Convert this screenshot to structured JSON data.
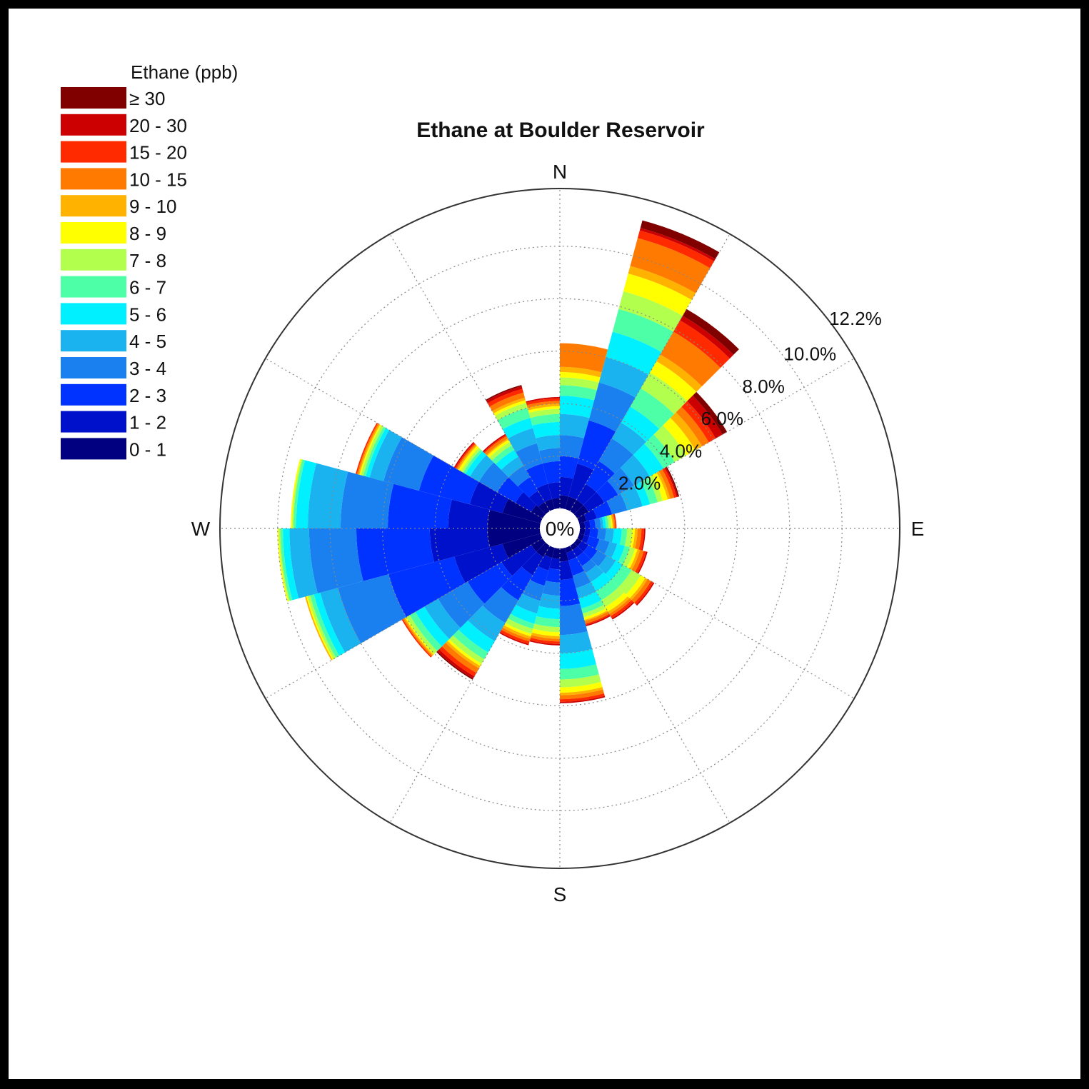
{
  "chart_data": {
    "type": "wind_rose",
    "title": "Ethane at Boulder Reservoir",
    "directions": [
      "N",
      "E",
      "S",
      "W"
    ],
    "center_label": "0%",
    "radial_unit": "%",
    "radial_max": 12.2,
    "ring_labels": [
      "2.0%",
      "4.0%",
      "6.0%",
      "8.0%",
      "10.0%",
      "12.2%"
    ],
    "ring_values": [
      2,
      4,
      6,
      8,
      10,
      12.2
    ],
    "legend": {
      "title": "Ethane (ppb)",
      "bins": [
        {
          "label": "≥ 30",
          "color": "#800000"
        },
        {
          "label": "20 - 30",
          "color": "#CC0000"
        },
        {
          "label": "15 - 20",
          "color": "#FF2A00"
        },
        {
          "label": "10 - 15",
          "color": "#FF7A00"
        },
        {
          "label": "9 - 10",
          "color": "#FFB300"
        },
        {
          "label": "8 - 9",
          "color": "#FFFF00"
        },
        {
          "label": "7 - 8",
          "color": "#B3FF4D"
        },
        {
          "label": "6 - 7",
          "color": "#4DFFA6"
        },
        {
          "label": "5 - 6",
          "color": "#00F0FF"
        },
        {
          "label": "4 - 5",
          "color": "#1AB3F0"
        },
        {
          "label": "3 - 4",
          "color": "#1A80F0"
        },
        {
          "label": "2 - 3",
          "color": "#0033FF"
        },
        {
          "label": "1 - 2",
          "color": "#0011CC"
        },
        {
          "label": "0 - 1",
          "color": "#000080"
        }
      ]
    },
    "bin_order_inner_to_outer": [
      "0 - 1",
      "1 - 2",
      "2 - 3",
      "3 - 4",
      "4 - 5",
      "5 - 6",
      "6 - 7",
      "7 - 8",
      "8 - 9",
      "9 - 10",
      "10 - 15",
      "15 - 20",
      "20 - 30",
      "≥ 30"
    ],
    "sector_width_deg": 15,
    "sectors": [
      {
        "center_deg": 7.5,
        "cumulative_pct": [
          0.5,
          1.2,
          2.0,
          2.8,
          3.6,
          4.3,
          4.7,
          5.0,
          5.2,
          5.4,
          6.3,
          6.3,
          6.3,
          6.3
        ]
      },
      {
        "center_deg": 22.5,
        "cumulative_pct": [
          0.5,
          1.8,
          3.5,
          5.0,
          6.0,
          7.0,
          7.9,
          8.6,
          9.3,
          9.6,
          10.7,
          11.0,
          11.1,
          11.4
        ]
      },
      {
        "center_deg": 37.5,
        "cumulative_pct": [
          0.5,
          1.2,
          2.2,
          3.2,
          3.9,
          4.6,
          5.4,
          6.1,
          6.6,
          6.9,
          7.9,
          8.4,
          8.6,
          8.9
        ]
      },
      {
        "center_deg": 52.5,
        "cumulative_pct": [
          0.5,
          1.2,
          1.8,
          2.5,
          3.2,
          3.8,
          4.3,
          4.8,
          5.2,
          5.5,
          5.8,
          6.1,
          6.4,
          6.6
        ]
      },
      {
        "center_deg": 67.5,
        "cumulative_pct": [
          0.3,
          0.7,
          1.3,
          1.9,
          2.5,
          2.8,
          3.1,
          3.3,
          3.5,
          3.6,
          3.75,
          3.85,
          3.9,
          3.95
        ]
      },
      {
        "center_deg": 82.5,
        "cumulative_pct": [
          0.2,
          0.4,
          0.6,
          0.8,
          0.9,
          1.0,
          1.1,
          1.2,
          1.25,
          1.3,
          1.35,
          1.4,
          1.4,
          1.4
        ]
      },
      {
        "center_deg": 97.5,
        "cumulative_pct": [
          0.2,
          0.4,
          0.7,
          1.0,
          1.3,
          1.6,
          1.8,
          2.0,
          2.1,
          2.2,
          2.35,
          2.45,
          2.5,
          2.5
        ]
      },
      {
        "center_deg": 112.5,
        "cumulative_pct": [
          0.2,
          0.4,
          0.8,
          1.2,
          1.5,
          1.8,
          2.0,
          2.2,
          2.3,
          2.4,
          2.55,
          2.65,
          2.7,
          2.7
        ]
      },
      {
        "center_deg": 127.5,
        "cumulative_pct": [
          0.2,
          0.5,
          0.9,
          1.3,
          1.7,
          2.0,
          2.4,
          2.8,
          3.0,
          3.1,
          3.25,
          3.35,
          3.4,
          3.4
        ]
      },
      {
        "center_deg": 142.5,
        "cumulative_pct": [
          0.2,
          0.5,
          0.9,
          1.2,
          1.6,
          2.0,
          2.4,
          2.7,
          2.9,
          3.0,
          3.1,
          3.2,
          3.25,
          3.25
        ]
      },
      {
        "center_deg": 157.5,
        "cumulative_pct": [
          0.2,
          0.5,
          1.1,
          1.6,
          2.0,
          2.4,
          2.6,
          2.75,
          2.85,
          2.9,
          3.0,
          3.05,
          3.1,
          3.1
        ]
      },
      {
        "center_deg": 172.5,
        "cumulative_pct": [
          0.5,
          1.2,
          2.2,
          3.3,
          4.0,
          4.6,
          5.0,
          5.3,
          5.5,
          5.6,
          5.75,
          5.85,
          5.9,
          5.9
        ]
      },
      {
        "center_deg": 187.5,
        "cumulative_pct": [
          0.4,
          0.8,
          1.3,
          1.8,
          2.3,
          2.7,
          3.0,
          3.2,
          3.35,
          3.45,
          3.55,
          3.65,
          3.7,
          3.7
        ]
      },
      {
        "center_deg": 202.5,
        "cumulative_pct": [
          0.4,
          0.9,
          1.5,
          2.1,
          2.6,
          3.0,
          3.2,
          3.4,
          3.5,
          3.6,
          3.7,
          3.8,
          3.85,
          3.85
        ]
      },
      {
        "center_deg": 217.5,
        "cumulative_pct": [
          0.5,
          1.3,
          2.4,
          3.4,
          4.2,
          4.7,
          5.0,
          5.2,
          5.3,
          5.4,
          5.6,
          5.75,
          5.85,
          5.9
        ]
      },
      {
        "center_deg": 232.5,
        "cumulative_pct": [
          0.5,
          1.8,
          3.3,
          4.6,
          5.2,
          5.6,
          5.85,
          6.0,
          6.05,
          6.1,
          6.15,
          6.2,
          6.2,
          6.2
        ]
      },
      {
        "center_deg": 247.5,
        "cumulative_pct": [
          1.5,
          3.4,
          6.0,
          8.0,
          8.7,
          8.95,
          9.1,
          9.2,
          9.25,
          9.3,
          9.3,
          9.3,
          9.3,
          9.3
        ]
      },
      {
        "center_deg": 262.5,
        "cumulative_pct": [
          2.0,
          4.2,
          7.0,
          8.8,
          9.55,
          9.8,
          9.9,
          9.95,
          10.0,
          10.0,
          10.0,
          10.0,
          10.0,
          10.0
        ]
      },
      {
        "center_deg": 277.5,
        "cumulative_pct": [
          2.0,
          3.5,
          5.8,
          7.6,
          8.85,
          9.3,
          9.4,
          9.45,
          9.5,
          9.5,
          9.5,
          9.5,
          9.5,
          9.5
        ]
      },
      {
        "center_deg": 292.5,
        "cumulative_pct": [
          1.5,
          2.8,
          4.8,
          6.2,
          6.75,
          6.9,
          7.0,
          7.1,
          7.15,
          7.2,
          7.25,
          7.3,
          7.3,
          7.3
        ]
      },
      {
        "center_deg": 307.5,
        "cumulative_pct": [
          0.5,
          1.2,
          2.0,
          2.8,
          3.2,
          3.4,
          3.5,
          3.6,
          3.7,
          3.75,
          3.8,
          3.85,
          3.9,
          3.9
        ]
      },
      {
        "center_deg": 322.5,
        "cumulative_pct": [
          0.4,
          0.9,
          1.5,
          2.0,
          2.4,
          2.7,
          2.9,
          3.05,
          3.15,
          3.2,
          3.3,
          3.35,
          3.4,
          3.4
        ]
      },
      {
        "center_deg": 337.5,
        "cumulative_pct": [
          0.4,
          1.0,
          1.8,
          2.6,
          3.2,
          3.6,
          4.0,
          4.2,
          4.3,
          4.4,
          4.6,
          4.75,
          4.85,
          4.9
        ]
      },
      {
        "center_deg": 352.5,
        "cumulative_pct": [
          0.4,
          1.0,
          1.8,
          2.3,
          2.8,
          3.3,
          3.6,
          3.8,
          3.9,
          4.0,
          4.1,
          4.2,
          4.25,
          4.25
        ]
      }
    ]
  }
}
